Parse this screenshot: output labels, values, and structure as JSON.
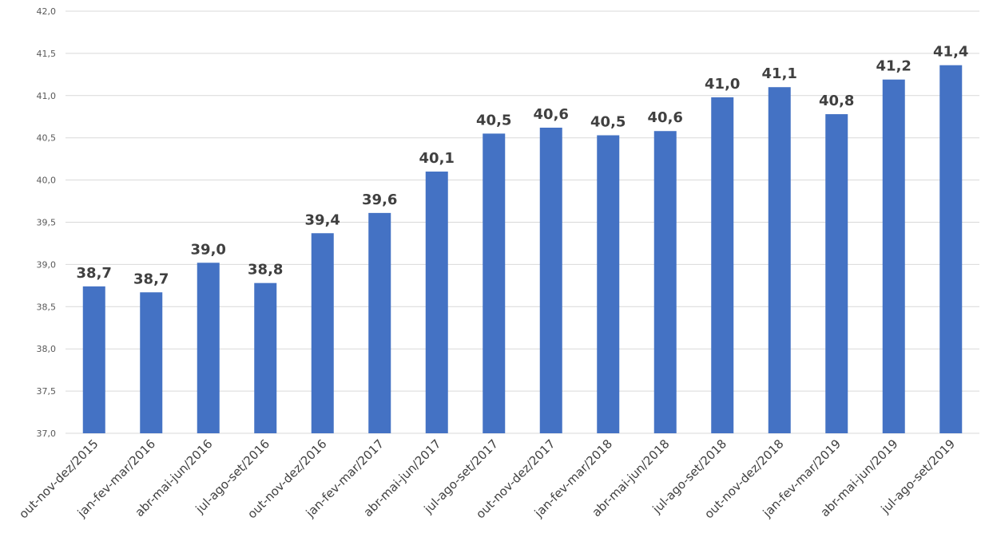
{
  "chart_data": {
    "type": "bar",
    "title": "",
    "xlabel": "",
    "ylabel": "",
    "ylim": [
      37.0,
      42.0
    ],
    "yticks": [
      "37,0",
      "37,5",
      "38,0",
      "38,5",
      "39,0",
      "39,5",
      "40,0",
      "40,5",
      "41,0",
      "41,5",
      "42,0"
    ],
    "grid": true,
    "bar_color": "#4472C4",
    "categories": [
      "out-nov-dez/2015",
      "jan-fev-mar/2016",
      "abr-mai-jun/2016",
      "jul-ago-set/2016",
      "out-nov-dez/2016",
      "jan-fev-mar/2017",
      "abr-mai-jun/2017",
      "jul-ago-set/2017",
      "out-nov-dez/2017",
      "jan-fev-mar/2018",
      "abr-mai-jun/2018",
      "jul-ago-set/2018",
      "out-nov-dez/2018",
      "jan-fev-mar/2019",
      "abr-mai-jun/2019",
      "jul-ago-set/2019"
    ],
    "values": [
      38.74,
      38.67,
      39.02,
      38.78,
      39.37,
      39.61,
      40.1,
      40.55,
      40.62,
      40.53,
      40.58,
      40.98,
      41.1,
      40.78,
      41.19,
      41.36
    ],
    "data_labels": [
      "38,7",
      "38,7",
      "39,0",
      "38,8",
      "39,4",
      "39,6",
      "40,1",
      "40,5",
      "40,6",
      "40,5",
      "40,6",
      "41,0",
      "41,1",
      "40,8",
      "41,2",
      "41,4"
    ]
  }
}
